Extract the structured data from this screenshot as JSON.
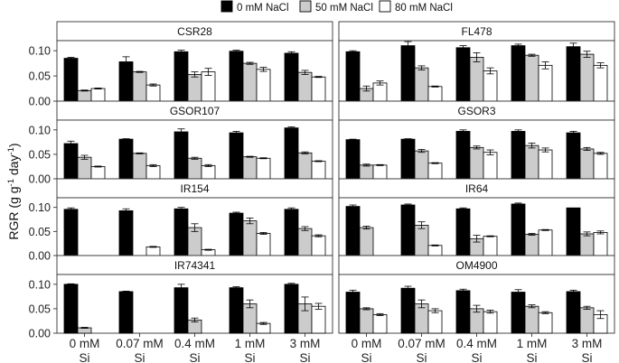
{
  "chart_data": {
    "type": "bar",
    "title": "",
    "ylabel": "RGR (g g⁻¹ day⁻¹)",
    "ylabel_parts": [
      "RGR (g g",
      "-1",
      " day",
      "-1",
      ")"
    ],
    "xlabel": "",
    "ylim": [
      0,
      0.12
    ],
    "yticks": [
      "0.00",
      "0.05",
      "0.10"
    ],
    "ytick_values": [
      0,
      0.05,
      0.1
    ],
    "categories": [
      "0 mM Si",
      "0.07 mM Si",
      "0.4 mM Si",
      "1 mM Si",
      "3 mM Si"
    ],
    "category_lines": [
      [
        "0 mM",
        "Si"
      ],
      [
        "0.07 mM",
        "Si"
      ],
      [
        "0.4 mM",
        "Si"
      ],
      [
        "1 mM",
        "Si"
      ],
      [
        "3 mM",
        "Si"
      ]
    ],
    "legend": [
      {
        "name": "0 mM NaCl",
        "color": "#000000"
      },
      {
        "name": "50 mM NaCl",
        "color": "#cccccc"
      },
      {
        "name": "80 mM NaCl",
        "color": "#ffffff"
      }
    ],
    "panels": [
      {
        "name": "CSR28",
        "series": [
          {
            "name": "0 mM NaCl",
            "values": [
              0.085,
              0.078,
              0.098,
              0.099,
              0.095
            ],
            "errors": [
              0.002,
              0.01,
              0.003,
              0.002,
              0.003
            ]
          },
          {
            "name": "50 mM NaCl",
            "values": [
              0.021,
              0.058,
              0.053,
              0.075,
              0.057
            ],
            "errors": [
              0.001,
              0.001,
              0.005,
              0.002,
              0.004
            ]
          },
          {
            "name": "80 mM NaCl",
            "values": [
              0.025,
              0.032,
              0.058,
              0.063,
              0.048
            ],
            "errors": [
              0.001,
              0.002,
              0.007,
              0.004,
              0.001
            ]
          }
        ]
      },
      {
        "name": "FL478",
        "series": [
          {
            "name": "0 mM NaCl",
            "values": [
              0.098,
              0.11,
              0.106,
              0.11,
              0.108
            ],
            "errors": [
              0.002,
              0.008,
              0.004,
              0.003,
              0.007
            ]
          },
          {
            "name": "50 mM NaCl",
            "values": [
              0.025,
              0.066,
              0.087,
              0.091,
              0.093
            ],
            "errors": [
              0.005,
              0.004,
              0.009,
              0.002,
              0.006
            ]
          },
          {
            "name": "80 mM NaCl",
            "values": [
              0.036,
              0.029,
              0.06,
              0.071,
              0.071
            ],
            "errors": [
              0.004,
              0.001,
              0.006,
              0.007,
              0.005
            ]
          }
        ]
      },
      {
        "name": "GSOR107",
        "series": [
          {
            "name": "0 mM NaCl",
            "values": [
              0.072,
              0.081,
              0.096,
              0.094,
              0.104
            ],
            "errors": [
              0.005,
              0.001,
              0.006,
              0.003,
              0.002
            ]
          },
          {
            "name": "50 mM NaCl",
            "values": [
              0.044,
              0.052,
              0.042,
              0.045,
              0.053
            ],
            "errors": [
              0.004,
              0.001,
              0.002,
              0.001,
              0.002
            ]
          },
          {
            "name": "80 mM NaCl",
            "values": [
              0.025,
              0.027,
              0.027,
              0.042,
              0.036
            ],
            "errors": [
              0.001,
              0.002,
              0.002,
              0.001,
              0.001
            ]
          }
        ]
      },
      {
        "name": "GSOR3",
        "series": [
          {
            "name": "0 mM NaCl",
            "values": [
              0.08,
              0.081,
              0.097,
              0.097,
              0.094
            ],
            "errors": [
              0.001,
              0.001,
              0.003,
              0.003,
              0.003
            ]
          },
          {
            "name": "50 mM NaCl",
            "values": [
              0.028,
              0.057,
              0.064,
              0.068,
              0.061
            ],
            "errors": [
              0.002,
              0.003,
              0.003,
              0.005,
              0.003
            ]
          },
          {
            "name": "80 mM NaCl",
            "values": [
              0.028,
              0.032,
              0.054,
              0.059,
              0.052
            ],
            "errors": [
              0.001,
              0.001,
              0.005,
              0.004,
              0.002
            ]
          }
        ]
      },
      {
        "name": "IR154",
        "series": [
          {
            "name": "0 mM NaCl",
            "values": [
              0.096,
              0.093,
              0.097,
              0.088,
              0.096
            ],
            "errors": [
              0.003,
              0.004,
              0.003,
              0.002,
              0.003
            ]
          },
          {
            "name": "50 mM NaCl",
            "values": [
              0.0,
              0.0,
              0.058,
              0.072,
              0.056
            ],
            "errors": [
              0.0,
              0.0,
              0.008,
              0.006,
              0.004
            ]
          },
          {
            "name": "80 mM NaCl",
            "values": [
              0.0,
              0.018,
              0.012,
              0.046,
              0.041
            ],
            "errors": [
              0.0,
              0.001,
              0.001,
              0.002,
              0.002
            ]
          }
        ]
      },
      {
        "name": "IR64",
        "series": [
          {
            "name": "0 mM NaCl",
            "values": [
              0.102,
              0.105,
              0.097,
              0.107,
              0.099
            ],
            "errors": [
              0.003,
              0.002,
              0.002,
              0.002,
              0.0
            ]
          },
          {
            "name": "50 mM NaCl",
            "values": [
              0.058,
              0.063,
              0.035,
              0.044,
              0.045
            ],
            "errors": [
              0.003,
              0.007,
              0.007,
              0.002,
              0.004
            ]
          },
          {
            "name": "80 mM NaCl",
            "values": [
              0.0,
              0.021,
              0.04,
              0.053,
              0.048
            ],
            "errors": [
              0.0,
              0.001,
              0.001,
              0.001,
              0.003
            ]
          }
        ]
      },
      {
        "name": "IR74341",
        "series": [
          {
            "name": "0 mM NaCl",
            "values": [
              0.1,
              0.085,
              0.093,
              0.093,
              0.1
            ],
            "errors": [
              0.001,
              0.001,
              0.007,
              0.002,
              0.002
            ]
          },
          {
            "name": "50 mM NaCl",
            "values": [
              0.011,
              0.0,
              0.027,
              0.06,
              0.06
            ],
            "errors": [
              0.001,
              0.0,
              0.004,
              0.008,
              0.014
            ]
          },
          {
            "name": "80 mM NaCl",
            "values": [
              0.0,
              0.0,
              0.0,
              0.02,
              0.055
            ],
            "errors": [
              0.0,
              0.0,
              0.0,
              0.002,
              0.006
            ]
          }
        ]
      },
      {
        "name": "OM4900",
        "series": [
          {
            "name": "0 mM NaCl",
            "values": [
              0.084,
              0.092,
              0.087,
              0.084,
              0.085
            ],
            "errors": [
              0.004,
              0.004,
              0.003,
              0.005,
              0.003
            ]
          },
          {
            "name": "50 mM NaCl",
            "values": [
              0.05,
              0.06,
              0.05,
              0.055,
              0.052
            ],
            "errors": [
              0.002,
              0.008,
              0.007,
              0.003,
              0.003
            ]
          },
          {
            "name": "80 mM NaCl",
            "values": [
              0.038,
              0.046,
              0.044,
              0.042,
              0.038
            ],
            "errors": [
              0.002,
              0.004,
              0.003,
              0.002,
              0.008
            ]
          }
        ]
      }
    ]
  }
}
